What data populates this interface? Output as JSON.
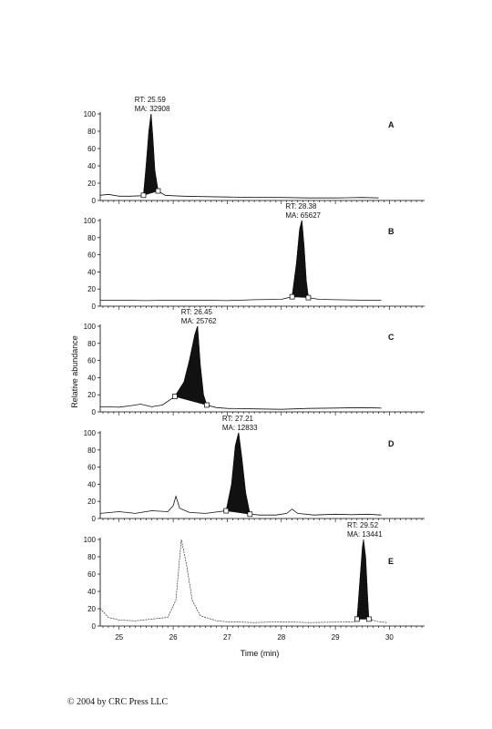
{
  "chart_data": {
    "type": "line",
    "subtype": "stacked chromatograms",
    "ylabel": "Relative abundance",
    "xlabel": "Time (min)",
    "xlim": [
      24.65,
      30.65
    ],
    "ylim": [
      0,
      100
    ],
    "x_ticks": [
      "25",
      "26",
      "27",
      "28",
      "29",
      "30"
    ],
    "y_ticks": [
      "0",
      "20",
      "40",
      "60",
      "80",
      "100"
    ],
    "traces": [
      {
        "label": "A",
        "peak": {
          "rt": 25.59,
          "area": 32908,
          "rt_text": "RT: 25.59",
          "ma_text": "MA: 32908",
          "start": 25.45,
          "end": 25.72
        },
        "series": [
          [
            24.65,
            6
          ],
          [
            24.8,
            7
          ],
          [
            25.0,
            5
          ],
          [
            25.2,
            5
          ],
          [
            25.4,
            5.5
          ],
          [
            25.45,
            6
          ],
          [
            25.5,
            40
          ],
          [
            25.55,
            80
          ],
          [
            25.59,
            100
          ],
          [
            25.62,
            75
          ],
          [
            25.66,
            35
          ],
          [
            25.72,
            11
          ],
          [
            25.85,
            6
          ],
          [
            26.0,
            5.5
          ],
          [
            26.2,
            5
          ],
          [
            26.5,
            4.5
          ],
          [
            27.0,
            4
          ],
          [
            27.5,
            3.5
          ],
          [
            28.0,
            3.5
          ],
          [
            28.5,
            3
          ],
          [
            29.0,
            3
          ],
          [
            29.5,
            3.5
          ],
          [
            29.8,
            3
          ]
        ]
      },
      {
        "label": "B",
        "peak": {
          "rt": 28.38,
          "area": 65627,
          "rt_text": "RT: 28.38",
          "ma_text": "MA: 65627",
          "start": 28.2,
          "end": 28.5
        },
        "series": [
          [
            24.65,
            7
          ],
          [
            25.0,
            7
          ],
          [
            25.5,
            6.5
          ],
          [
            26.0,
            7
          ],
          [
            26.5,
            7
          ],
          [
            27.0,
            6.5
          ],
          [
            27.5,
            7.5
          ],
          [
            28.0,
            8
          ],
          [
            28.2,
            11
          ],
          [
            28.28,
            50
          ],
          [
            28.34,
            90
          ],
          [
            28.38,
            100
          ],
          [
            28.42,
            70
          ],
          [
            28.46,
            30
          ],
          [
            28.5,
            10
          ],
          [
            28.7,
            8
          ],
          [
            29.0,
            7.5
          ],
          [
            29.5,
            7
          ],
          [
            29.85,
            7
          ]
        ]
      },
      {
        "label": "C",
        "peak": {
          "rt": 26.45,
          "area": 25762,
          "rt_text": "RT: 26.45",
          "ma_text": "MA: 25762",
          "start": 26.03,
          "end": 26.62
        },
        "series": [
          [
            24.65,
            6
          ],
          [
            25.0,
            5.5
          ],
          [
            25.2,
            7
          ],
          [
            25.4,
            9
          ],
          [
            25.6,
            6
          ],
          [
            25.8,
            8
          ],
          [
            26.03,
            18
          ],
          [
            26.2,
            35
          ],
          [
            26.3,
            60
          ],
          [
            26.4,
            90
          ],
          [
            26.45,
            100
          ],
          [
            26.5,
            55
          ],
          [
            26.56,
            20
          ],
          [
            26.62,
            8
          ],
          [
            26.8,
            5
          ],
          [
            27.0,
            4
          ],
          [
            27.5,
            3.5
          ],
          [
            28.0,
            3
          ],
          [
            28.5,
            4
          ],
          [
            29.0,
            4.5
          ],
          [
            29.5,
            5
          ],
          [
            29.85,
            4.5
          ]
        ]
      },
      {
        "label": "D",
        "peak": {
          "rt": 27.21,
          "area": 12833,
          "rt_text": "RT: 27.21",
          "ma_text": "MA: 12833",
          "start": 26.98,
          "end": 27.42
        },
        "series": [
          [
            24.65,
            6
          ],
          [
            25.0,
            8
          ],
          [
            25.3,
            6
          ],
          [
            25.6,
            9
          ],
          [
            25.9,
            8
          ],
          [
            26.0,
            15
          ],
          [
            26.05,
            26
          ],
          [
            26.12,
            12
          ],
          [
            26.3,
            7
          ],
          [
            26.6,
            6
          ],
          [
            26.98,
            9
          ],
          [
            27.08,
            40
          ],
          [
            27.15,
            85
          ],
          [
            27.21,
            100
          ],
          [
            27.27,
            70
          ],
          [
            27.34,
            30
          ],
          [
            27.42,
            5
          ],
          [
            27.6,
            4
          ],
          [
            27.9,
            4
          ],
          [
            28.1,
            6
          ],
          [
            28.2,
            11
          ],
          [
            28.3,
            6
          ],
          [
            28.6,
            4
          ],
          [
            29.0,
            5
          ],
          [
            29.3,
            4.5
          ],
          [
            29.6,
            5
          ],
          [
            29.85,
            4
          ]
        ]
      },
      {
        "label": "E",
        "peak": {
          "rt": 29.52,
          "area": 13441,
          "rt_text": "RT: 29.52",
          "ma_text": "MA: 13441",
          "start": 29.4,
          "end": 29.62
        },
        "series": [
          [
            24.65,
            20
          ],
          [
            24.8,
            10
          ],
          [
            25.0,
            7
          ],
          [
            25.3,
            6
          ],
          [
            25.6,
            8
          ],
          [
            25.9,
            10
          ],
          [
            26.05,
            30
          ],
          [
            26.15,
            100
          ],
          [
            26.25,
            70
          ],
          [
            26.35,
            30
          ],
          [
            26.5,
            12
          ],
          [
            26.8,
            6
          ],
          [
            27.0,
            5
          ],
          [
            27.5,
            4
          ],
          [
            28.0,
            5
          ],
          [
            28.5,
            4
          ],
          [
            29.0,
            4.5
          ],
          [
            29.35,
            5
          ],
          [
            29.4,
            8
          ],
          [
            29.45,
            50
          ],
          [
            29.5,
            92
          ],
          [
            29.52,
            100
          ],
          [
            29.56,
            80
          ],
          [
            29.6,
            30
          ],
          [
            29.62,
            8
          ],
          [
            29.8,
            5
          ],
          [
            29.95,
            4
          ]
        ]
      }
    ]
  },
  "footer": {
    "copyright": "© 2004 by CRC Press LLC"
  }
}
